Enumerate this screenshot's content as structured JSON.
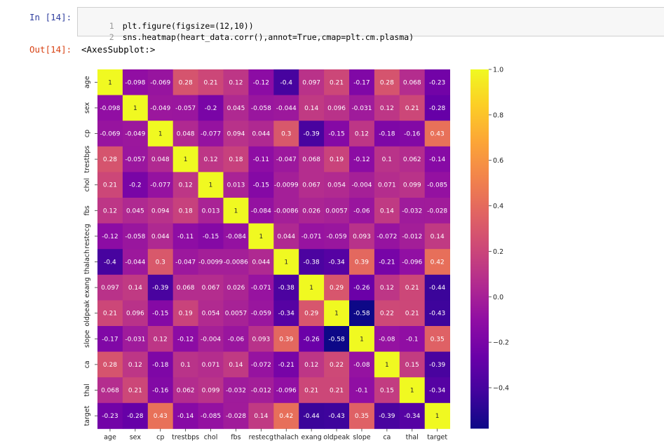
{
  "notebook": {
    "in_prompt": "In [14]:",
    "out_prompt": "Out[14]:",
    "code_lines": [
      {
        "num": "1",
        "text": "plt.figure(figsize=(12,10))"
      },
      {
        "num": "2",
        "text": "sns.heatmap(heart_data.corr(),annot=True,cmap=plt.cm.plasma)"
      }
    ],
    "output_text": "<AxesSubplot:>"
  },
  "colors": {
    "prompt_in": "#303f9f",
    "prompt_out": "#d84315",
    "cmap": "plasma"
  },
  "chart_data": {
    "type": "heatmap",
    "labels": [
      "age",
      "sex",
      "cp",
      "trestbps",
      "chol",
      "fbs",
      "restecg",
      "thalach",
      "exang",
      "oldpeak",
      "slope",
      "ca",
      "thal",
      "target"
    ],
    "colorbar_range": [
      -0.58,
      1.0
    ],
    "colorbar_ticks": [
      "1.0",
      "0.8",
      "0.6",
      "0.4",
      "0.2",
      "0.0",
      "−0.2",
      "−0.4"
    ],
    "colorbar_tick_values": [
      1.0,
      0.8,
      0.6,
      0.4,
      0.2,
      0.0,
      -0.2,
      -0.4
    ],
    "annotations": [
      [
        "1",
        "-0.098",
        "-0.069",
        "0.28",
        "0.21",
        "0.12",
        "-0.12",
        "-0.4",
        "0.097",
        "0.21",
        "-0.17",
        "0.28",
        "0.068",
        "-0.23"
      ],
      [
        "-0.098",
        "1",
        "-0.049",
        "-0.057",
        "-0.2",
        "0.045",
        "-0.058",
        "-0.044",
        "0.14",
        "0.096",
        "-0.031",
        "0.12",
        "0.21",
        "-0.28"
      ],
      [
        "-0.069",
        "-0.049",
        "1",
        "0.048",
        "-0.077",
        "0.094",
        "0.044",
        "0.3",
        "-0.39",
        "-0.15",
        "0.12",
        "-0.18",
        "-0.16",
        "0.43"
      ],
      [
        "0.28",
        "-0.057",
        "0.048",
        "1",
        "0.12",
        "0.18",
        "-0.11",
        "-0.047",
        "0.068",
        "0.19",
        "-0.12",
        "0.1",
        "0.062",
        "-0.14"
      ],
      [
        "0.21",
        "-0.2",
        "-0.077",
        "0.12",
        "1",
        "0.013",
        "-0.15",
        "-0.0099",
        "0.067",
        "0.054",
        "-0.004",
        "0.071",
        "0.099",
        "-0.085"
      ],
      [
        "0.12",
        "0.045",
        "0.094",
        "0.18",
        "0.013",
        "1",
        "-0.084",
        "-0.0086",
        "0.026",
        "0.0057",
        "-0.06",
        "0.14",
        "-0.032",
        "-0.028"
      ],
      [
        "-0.12",
        "-0.058",
        "0.044",
        "-0.11",
        "-0.15",
        "-0.084",
        "1",
        "0.044",
        "-0.071",
        "-0.059",
        "0.093",
        "-0.072",
        "-0.012",
        "0.14"
      ],
      [
        "-0.4",
        "-0.044",
        "0.3",
        "-0.047",
        "-0.0099",
        "-0.0086",
        "0.044",
        "1",
        "-0.38",
        "-0.34",
        "0.39",
        "-0.21",
        "-0.096",
        "0.42"
      ],
      [
        "0.097",
        "0.14",
        "-0.39",
        "0.068",
        "0.067",
        "0.026",
        "-0.071",
        "-0.38",
        "1",
        "0.29",
        "-0.26",
        "0.12",
        "0.21",
        "-0.44"
      ],
      [
        "0.21",
        "0.096",
        "-0.15",
        "0.19",
        "0.054",
        "0.0057",
        "-0.059",
        "-0.34",
        "0.29",
        "1",
        "-0.58",
        "0.22",
        "0.21",
        "-0.43"
      ],
      [
        "-0.17",
        "-0.031",
        "0.12",
        "-0.12",
        "-0.004",
        "-0.06",
        "0.093",
        "0.39",
        "-0.26",
        "-0.58",
        "1",
        "-0.08",
        "-0.1",
        "0.35"
      ],
      [
        "0.28",
        "0.12",
        "-0.18",
        "0.1",
        "0.071",
        "0.14",
        "-0.072",
        "-0.21",
        "0.12",
        "0.22",
        "-0.08",
        "1",
        "0.15",
        "-0.39"
      ],
      [
        "0.068",
        "0.21",
        "-0.16",
        "0.062",
        "0.099",
        "-0.032",
        "-0.012",
        "-0.096",
        "0.21",
        "0.21",
        "-0.1",
        "0.15",
        "1",
        "-0.34"
      ],
      [
        "-0.23",
        "-0.28",
        "0.43",
        "-0.14",
        "-0.085",
        "-0.028",
        "0.14",
        "0.42",
        "-0.44",
        "-0.43",
        "0.35",
        "-0.39",
        "-0.34",
        "1"
      ]
    ]
  }
}
